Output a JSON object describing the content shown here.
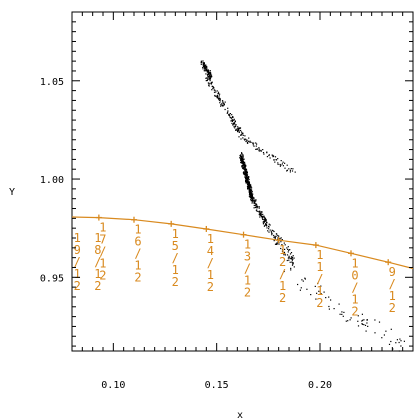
{
  "chart_data": {
    "type": "scatter",
    "title": "",
    "xlabel": "x",
    "ylabel": "Y",
    "xlim": [
      0.08,
      0.245
    ],
    "ylim": [
      0.9125,
      1.085
    ],
    "x_ticks": [
      0.1,
      0.15,
      0.2
    ],
    "x_tick_labels": [
      "0.10",
      "0.15",
      "0.20"
    ],
    "y_ticks": [
      0.95,
      1.0,
      1.05
    ],
    "y_tick_labels": [
      "0.95",
      "1.00",
      "1.05"
    ],
    "grid": false,
    "legend": false,
    "colors": {
      "points": "#000000",
      "curve": "#d98a1f"
    },
    "series": [
      {
        "type": "line",
        "markers": [
          {
            "x": 0.093,
            "y": 0.9804,
            "label": [
              "1",
              "7",
              "/",
              "1",
              "2"
            ]
          },
          {
            "x": 0.11,
            "y": 0.9793,
            "label": [
              "1",
              "6",
              "/",
              "1",
              "2"
            ]
          },
          {
            "x": 0.128,
            "y": 0.9772,
            "label": [
              "1",
              "5",
              "/",
              "1",
              "2"
            ]
          },
          {
            "x": 0.145,
            "y": 0.9746,
            "label": [
              "1",
              "4",
              "/",
              "1",
              "2"
            ]
          },
          {
            "x": 0.163,
            "y": 0.9717,
            "label": [
              "1",
              "3",
              "/",
              "1",
              "2"
            ]
          },
          {
            "x": 0.18,
            "y": 0.9689,
            "label": [
              "1",
              "2",
              "/",
              "1",
              "2"
            ]
          },
          {
            "x": 0.198,
            "y": 0.9664,
            "label": [
              "1",
              "1",
              "/",
              "1",
              "2"
            ]
          },
          {
            "x": 0.215,
            "y": 0.9622,
            "label": [
              "1",
              "0",
              "/",
              "1",
              "2"
            ]
          },
          {
            "x": 0.233,
            "y": 0.9577,
            "label": [
              "9",
              "/",
              "1",
              "2"
            ]
          }
        ],
        "curve": [
          [
            0.08,
            0.9807
          ],
          [
            0.093,
            0.9804
          ],
          [
            0.11,
            0.9793
          ],
          [
            0.128,
            0.9772
          ],
          [
            0.145,
            0.9746
          ],
          [
            0.163,
            0.9717
          ],
          [
            0.18,
            0.9689
          ],
          [
            0.198,
            0.9664
          ],
          [
            0.215,
            0.9622
          ],
          [
            0.233,
            0.9577
          ],
          [
            0.245,
            0.9545
          ]
        ],
        "extra_labels": [
          {
            "x": 0.083,
            "label": [
              "1",
              "9",
              "/",
              "1",
              "2"
            ]
          },
          {
            "x": 0.093,
            "label": [
              "1",
              "8",
              "/",
              "1",
              "2"
            ]
          }
        ]
      },
      {
        "type": "scatter",
        "clusters": [
          {
            "kind": "band",
            "start": [
              0.1425,
              1.0595
            ],
            "end": [
              0.147,
              1.0525
            ],
            "n": 95,
            "spread": 0.0018
          },
          {
            "kind": "band",
            "start": [
              0.145,
              1.052
            ],
            "end": [
              0.162,
              1.022
            ],
            "n": 140,
            "spread": 0.002
          },
          {
            "kind": "band",
            "start": [
              0.162,
              1.022
            ],
            "end": [
              0.188,
              1.003
            ],
            "n": 75,
            "spread": 0.0015
          },
          {
            "kind": "band",
            "start": [
              0.1615,
              1.0125
            ],
            "end": [
              0.167,
              0.99
            ],
            "n": 360,
            "spread": 0.002
          },
          {
            "kind": "band",
            "start": [
              0.167,
              0.99
            ],
            "end": [
              0.175,
              0.975
            ],
            "n": 110,
            "spread": 0.0018
          },
          {
            "kind": "band",
            "start": [
              0.175,
              0.975
            ],
            "end": [
              0.187,
              0.958
            ],
            "n": 80,
            "spread": 0.003
          },
          {
            "kind": "band",
            "start": [
              0.183,
              0.952
            ],
            "end": [
              0.24,
              0.915
            ],
            "n": 70,
            "spread": 0.0045
          }
        ]
      }
    ]
  }
}
